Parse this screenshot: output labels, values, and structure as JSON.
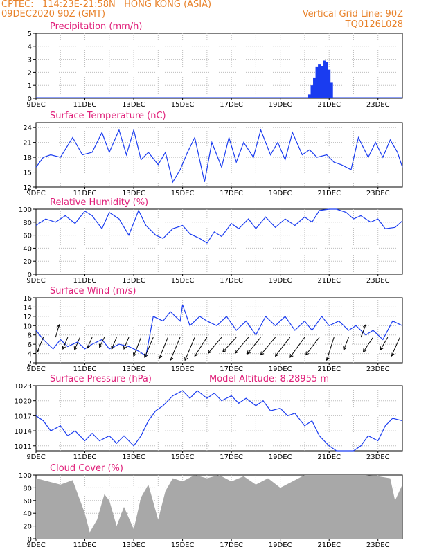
{
  "header": {
    "source_location": "CPTEC:   114:23E-21:58N   HONG KONG (ASIA)",
    "run": "09DEC2020 90Z (GMT)",
    "grid_note": "Vertical Grid Line: 90Z",
    "station_code": "TQ0126L028"
  },
  "colors": {
    "title": "#e0207a",
    "header": "#e8822a",
    "series": "#1a3cf0",
    "cloud": "#a8a8a8"
  },
  "x_tick_labels": [
    "9DEC",
    "11DEC",
    "13DEC",
    "15DEC",
    "17DEC",
    "19DEC",
    "21DEC",
    "23DEC"
  ],
  "chart_data": [
    {
      "type": "bar",
      "title": "Precipitation (mm/h)",
      "ylim": [
        0,
        5
      ],
      "yticks": [
        0,
        1,
        2,
        3,
        4,
        5
      ],
      "x_days": [
        20.2,
        20.3,
        20.4,
        20.5,
        20.6,
        20.7,
        20.8,
        20.9,
        21.0,
        21.1
      ],
      "values": [
        0.3,
        1.0,
        1.6,
        2.4,
        2.6,
        2.5,
        2.9,
        2.8,
        2.2,
        1.2
      ]
    },
    {
      "type": "line",
      "title": "Surface Temperature (nC)",
      "ylim": [
        12,
        25
      ],
      "yticks": [
        12,
        15,
        18,
        21,
        24
      ],
      "x_days": [
        9.0,
        9.3,
        9.6,
        10.0,
        10.5,
        10.9,
        11.3,
        11.7,
        12.0,
        12.4,
        12.7,
        13.0,
        13.3,
        13.6,
        14.0,
        14.3,
        14.6,
        14.9,
        15.2,
        15.5,
        15.9,
        16.2,
        16.6,
        16.9,
        17.2,
        17.5,
        17.9,
        18.2,
        18.6,
        18.9,
        19.2,
        19.5,
        19.9,
        20.2,
        20.5,
        20.9,
        21.2,
        21.5,
        21.9,
        22.2,
        22.6,
        22.9,
        23.2,
        23.5,
        23.8,
        24.0
      ],
      "values": [
        16,
        18,
        18.5,
        18,
        22,
        18.5,
        19,
        23,
        19,
        23.5,
        18.5,
        23.5,
        17.5,
        19,
        16.5,
        19,
        13,
        15.5,
        19,
        22,
        13,
        21,
        16,
        22,
        17,
        21,
        18,
        23.5,
        18.5,
        21,
        17.5,
        23,
        18.5,
        19.5,
        18,
        18.5,
        17,
        16.5,
        15.5,
        22,
        18,
        21,
        18,
        21.5,
        19,
        16
      ]
    },
    {
      "type": "line",
      "title": "Relative Humidity (%)",
      "ylim": [
        0,
        100
      ],
      "yticks": [
        0,
        20,
        40,
        60,
        80,
        100
      ],
      "x_days": [
        9.0,
        9.4,
        9.8,
        10.2,
        10.6,
        11.0,
        11.3,
        11.7,
        12.0,
        12.4,
        12.8,
        13.2,
        13.5,
        13.9,
        14.2,
        14.6,
        15.0,
        15.3,
        15.7,
        16.0,
        16.3,
        16.6,
        17.0,
        17.3,
        17.7,
        18.0,
        18.4,
        18.8,
        19.2,
        19.6,
        20.0,
        20.3,
        20.6,
        21.0,
        21.3,
        21.7,
        22.0,
        22.3,
        22.7,
        23.0,
        23.3,
        23.7,
        24.0
      ],
      "values": [
        75,
        85,
        80,
        90,
        78,
        97,
        90,
        70,
        95,
        85,
        60,
        98,
        75,
        60,
        55,
        70,
        75,
        62,
        55,
        48,
        65,
        58,
        78,
        70,
        85,
        70,
        88,
        72,
        85,
        75,
        88,
        80,
        98,
        100,
        100,
        95,
        85,
        90,
        80,
        85,
        70,
        72,
        82
      ]
    },
    {
      "type": "line",
      "title": "Surface Wind (m/s)",
      "ylim": [
        2,
        16
      ],
      "yticks": [
        2,
        4,
        6,
        8,
        10,
        12,
        14,
        16
      ],
      "x_days": [
        9.0,
        9.3,
        9.7,
        10.0,
        10.3,
        10.7,
        11.0,
        11.3,
        11.7,
        12.0,
        12.4,
        12.8,
        13.2,
        13.5,
        13.8,
        14.2,
        14.5,
        14.9,
        15.0,
        15.3,
        15.7,
        16.0,
        16.4,
        16.8,
        17.2,
        17.6,
        18.0,
        18.4,
        18.8,
        19.2,
        19.6,
        20.0,
        20.3,
        20.7,
        21.0,
        21.4,
        21.8,
        22.1,
        22.5,
        22.8,
        23.2,
        23.6,
        24.0
      ],
      "values": [
        9,
        7,
        5,
        7,
        5.5,
        6.5,
        5,
        6,
        7,
        5,
        6,
        5.5,
        4.5,
        3.5,
        12,
        11,
        13,
        11,
        14.5,
        10,
        12,
        11,
        10,
        12,
        9,
        11,
        8,
        12,
        10,
        12,
        9,
        11,
        9,
        12,
        10,
        11,
        9,
        10,
        8,
        9,
        7,
        11,
        10
      ],
      "wind_barbs": [
        {
          "x": 9.3,
          "dx": -0.25,
          "dy": -3.5
        },
        {
          "x": 9.8,
          "dx": 0.15,
          "dy": 3.0
        },
        {
          "x": 10.3,
          "dx": -0.2,
          "dy": -2.8
        },
        {
          "x": 10.8,
          "dx": -0.22,
          "dy": -3.0
        },
        {
          "x": 11.3,
          "dx": -0.2,
          "dy": -2.6
        },
        {
          "x": 11.8,
          "dx": -0.2,
          "dy": -2.4
        },
        {
          "x": 12.3,
          "dx": -0.2,
          "dy": -2.8
        },
        {
          "x": 12.8,
          "dx": -0.2,
          "dy": -2.8
        },
        {
          "x": 13.3,
          "dx": -0.3,
          "dy": -4.5
        },
        {
          "x": 13.8,
          "dx": -0.35,
          "dy": -4.8
        },
        {
          "x": 14.4,
          "dx": -0.35,
          "dy": -5.0
        },
        {
          "x": 14.9,
          "dx": -0.4,
          "dy": -5.5
        },
        {
          "x": 15.5,
          "dx": -0.4,
          "dy": -5.5
        },
        {
          "x": 16.0,
          "dx": -0.5,
          "dy": -4.5
        },
        {
          "x": 16.6,
          "dx": -0.55,
          "dy": -3.8
        },
        {
          "x": 17.2,
          "dx": -0.55,
          "dy": -3.5
        },
        {
          "x": 17.7,
          "dx": -0.55,
          "dy": -3.8
        },
        {
          "x": 18.2,
          "dx": -0.55,
          "dy": -4.0
        },
        {
          "x": 18.8,
          "dx": -0.6,
          "dy": -4.2
        },
        {
          "x": 19.4,
          "dx": -0.6,
          "dy": -4.5
        },
        {
          "x": 20.0,
          "dx": -0.6,
          "dy": -4.8
        },
        {
          "x": 20.6,
          "dx": -0.55,
          "dy": -4.2
        },
        {
          "x": 21.2,
          "dx": -0.3,
          "dy": -5.5
        },
        {
          "x": 21.8,
          "dx": -0.2,
          "dy": -3.0
        },
        {
          "x": 22.3,
          "dx": 0.2,
          "dy": 3.0
        },
        {
          "x": 22.8,
          "dx": -0.4,
          "dy": -3.5
        },
        {
          "x": 23.4,
          "dx": -0.3,
          "dy": -3.0
        },
        {
          "x": 23.9,
          "dx": -0.35,
          "dy": -4.5
        }
      ]
    },
    {
      "type": "line",
      "title": "Surface Pressure (hPa)",
      "annotation": "Model Altitude: 8.28955 m",
      "ylim": [
        1010,
        1023
      ],
      "yticks": [
        1011,
        1014,
        1017,
        1020,
        1023
      ],
      "x_days": [
        9.0,
        9.3,
        9.6,
        10.0,
        10.3,
        10.6,
        11.0,
        11.3,
        11.6,
        12.0,
        12.3,
        12.6,
        13.0,
        13.3,
        13.6,
        13.9,
        14.2,
        14.6,
        15.0,
        15.3,
        15.6,
        16.0,
        16.3,
        16.6,
        17.0,
        17.3,
        17.6,
        18.0,
        18.3,
        18.6,
        19.0,
        19.3,
        19.6,
        20.0,
        20.3,
        20.6,
        21.0,
        21.3,
        21.6,
        22.0,
        22.3,
        22.6,
        23.0,
        23.3,
        23.6,
        24.0
      ],
      "values": [
        1017,
        1016,
        1014,
        1015,
        1013,
        1014,
        1012,
        1013.5,
        1012,
        1013,
        1011.5,
        1013,
        1011,
        1013,
        1016,
        1018,
        1019,
        1021,
        1022,
        1020.5,
        1022,
        1020.5,
        1021.5,
        1020,
        1021,
        1019.5,
        1020.5,
        1019,
        1020,
        1018,
        1018.5,
        1017,
        1017.5,
        1015,
        1016,
        1013,
        1011,
        1008,
        1006,
        1009,
        1011,
        1013,
        1012,
        1015,
        1016.5,
        1016
      ]
    },
    {
      "type": "area",
      "title": "Cloud Cover (%)",
      "ylim": [
        0,
        100
      ],
      "yticks": [
        0,
        20,
        40,
        60,
        80,
        100
      ],
      "x_days": [
        9.0,
        9.5,
        10.0,
        10.5,
        11.0,
        11.2,
        11.5,
        11.8,
        12.0,
        12.3,
        12.6,
        13.0,
        13.3,
        13.6,
        14.0,
        14.3,
        14.6,
        15.0,
        15.5,
        16.0,
        16.5,
        17.0,
        17.5,
        18.0,
        18.5,
        19.0,
        19.5,
        20.0,
        20.5,
        21.0,
        21.5,
        22.0,
        22.5,
        23.0,
        23.5,
        23.7,
        24.0
      ],
      "values": [
        95,
        90,
        85,
        92,
        40,
        10,
        30,
        70,
        60,
        20,
        50,
        15,
        65,
        85,
        30,
        75,
        95,
        90,
        100,
        95,
        100,
        90,
        98,
        85,
        95,
        80,
        90,
        100,
        100,
        100,
        100,
        100,
        100,
        98,
        95,
        60,
        85
      ]
    }
  ]
}
